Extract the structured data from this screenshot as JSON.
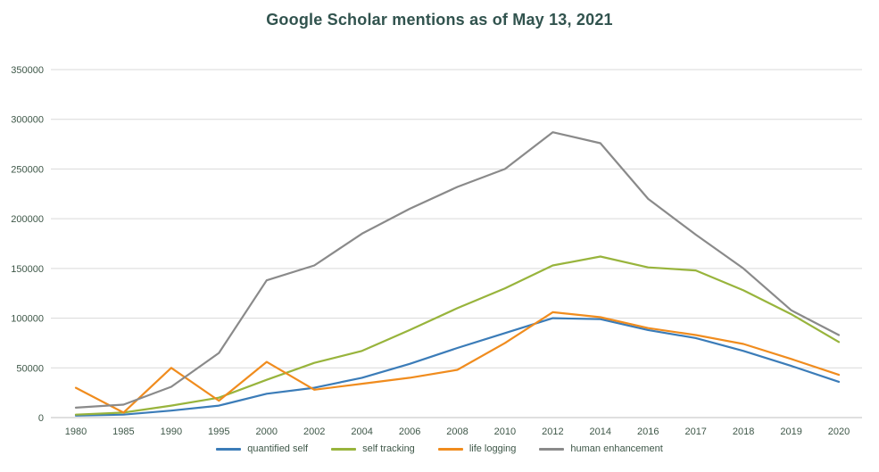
{
  "chart_data": {
    "type": "line",
    "title": "Google Scholar mentions as of May 13, 2021",
    "xlabel": "",
    "ylabel": "",
    "categories": [
      "1980",
      "1985",
      "1990",
      "1995",
      "2000",
      "2002",
      "2004",
      "2006",
      "2008",
      "2010",
      "2012",
      "2014",
      "2016",
      "2017",
      "2018",
      "2019",
      "2020"
    ],
    "series": [
      {
        "name": "quantified self",
        "color": "#3B7CB8",
        "values": [
          2000,
          3000,
          7000,
          12000,
          24000,
          30000,
          40000,
          54000,
          70000,
          85000,
          100000,
          99000,
          88000,
          80000,
          67000,
          52000,
          36000
        ]
      },
      {
        "name": "self tracking",
        "color": "#98B43C",
        "values": [
          3000,
          5000,
          12000,
          20000,
          38000,
          55000,
          67000,
          88000,
          110000,
          130000,
          153000,
          162000,
          151000,
          148000,
          128000,
          104000,
          76000
        ]
      },
      {
        "name": "life logging",
        "color": "#F08C1E",
        "values": [
          30000,
          5000,
          50000,
          17000,
          56000,
          28000,
          34000,
          40000,
          48000,
          75000,
          106000,
          101000,
          90000,
          83000,
          74000,
          59000,
          43000
        ]
      },
      {
        "name": "human enhancement",
        "color": "#8A8A8A",
        "values": [
          10000,
          13000,
          31000,
          65000,
          138000,
          153000,
          185000,
          210000,
          232000,
          250000,
          287000,
          276000,
          220000,
          184000,
          150000,
          108000,
          83000
        ]
      }
    ],
    "ylim": [
      0,
      350000
    ],
    "yticks": [
      0,
      50000,
      100000,
      150000,
      200000,
      250000,
      300000,
      350000
    ],
    "grid": "horizontal",
    "legend_position": "bottom"
  },
  "style": {
    "title_color": "#31534E",
    "axis_text_color": "#3E5748",
    "grid_color": "#D9D9D9",
    "axis_line_color": "#BFBFBF",
    "background": "#FFFFFF"
  }
}
